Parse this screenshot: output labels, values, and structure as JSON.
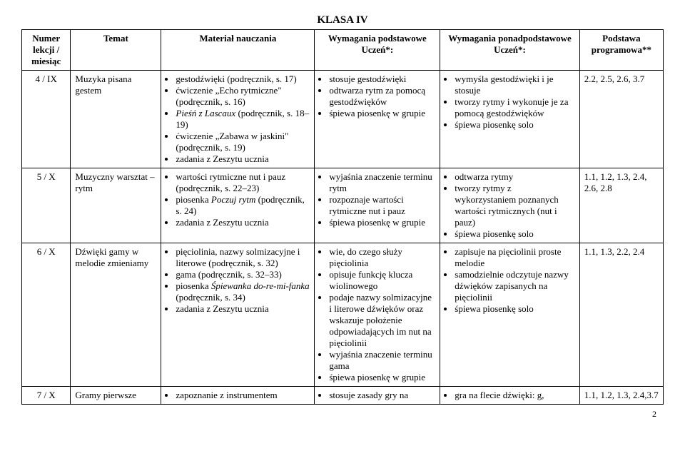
{
  "title": "KLASA IV",
  "headers": {
    "h1": "Numer lekcji / miesiąc",
    "h2": "Temat",
    "h3": "Materiał nauczania",
    "h4a": "Wymagania podstawowe",
    "h4b": "Uczeń*:",
    "h5a": "Wymagania ponadpodstawowe",
    "h5b": "Uczeń*:",
    "h6": "Podstawa programowa**"
  },
  "r1": {
    "num": "4 / IX",
    "topic": "Muzyka pisana gestem",
    "m1": "gestodźwięki (podręcznik, s. 17)",
    "m2": "ćwiczenie „Echo rytmiczne\" (podręcznik, s. 16)",
    "m3a": "Pieśń z Lascaux",
    "m3b": " (podręcznik, s. 18–19)",
    "m4": "ćwiczenie „Zabawa w jaskini\" (podręcznik, s. 19)",
    "m5": "zadania z Zeszytu ucznia",
    "p1": "stosuje gestodźwięki",
    "p2": "odtwarza rytm za pomocą gestodźwięków",
    "p3": "śpiewa piosenkę w grupie",
    "pp1": "wymyśla gestodźwięki i je stosuje",
    "pp2": "tworzy rytmy i wykonuje je za pomocą gestodźwięków",
    "pp3": "śpiewa piosenkę solo",
    "std": "2.2, 2.5, 2.6, 3.7"
  },
  "r2": {
    "num": "5 / X",
    "topic": "Muzyczny warsztat – rytm",
    "m1": "wartości rytmiczne nut i pauz (podręcznik, s. 22–23)",
    "m2a": "piosenka ",
    "m2b": "Poczuj rytm",
    "m2c": " (podręcznik, s. 24)",
    "m3": "zadania z Zeszytu ucznia",
    "p1": "wyjaśnia znaczenie terminu rytm",
    "p2": "rozpoznaje wartości rytmiczne nut i pauz",
    "p3": "śpiewa piosenkę w grupie",
    "pp1": "odtwarza rytmy",
    "pp2": "tworzy rytmy z wykorzystaniem poznanych wartości rytmicznych (nut i pauz)",
    "pp3": "śpiewa piosenkę solo",
    "std": "1.1, 1.2, 1.3, 2.4, 2.6, 2.8"
  },
  "r3": {
    "num": "6 / X",
    "topic": "Dźwięki gamy w melodie zmieniamy",
    "m1": "pięciolinia, nazwy solmizacyjne i literowe (podręcznik, s. 32)",
    "m2": "gama (podręcznik, s. 32–33)",
    "m3a": "piosenka ",
    "m3b": "Śpiewanka do-re-mi-fanka",
    "m3c": " (podręcznik, s. 34)",
    "m4": "zadania z Zeszytu ucznia",
    "p1": "wie, do czego służy pięciolinia",
    "p2": "opisuje funkcję klucza wiolinowego",
    "p3": "podaje nazwy solmizacyjne i literowe dźwięków oraz wskazuje położenie odpowiadających im nut na pięciolinii",
    "p4": "wyjaśnia znaczenie terminu gama",
    "p5": "śpiewa piosenkę w grupie",
    "pp1": "zapisuje na pięciolinii proste melodie",
    "pp2": "samodzielnie odczytuje nazwy dźwięków zapisanych na pięciolinii",
    "pp3": "śpiewa piosenkę solo",
    "std": "1.1, 1.3, 2.2, 2.4"
  },
  "r4": {
    "num": "7 / X",
    "topic": "Gramy pierwsze",
    "m1": "zapoznanie z instrumentem",
    "p1": "stosuje zasady gry na",
    "pp1": "gra na flecie dźwięki: g,",
    "std": "1.1, 1.2, 1.3, 2.4,3.7"
  },
  "pagenum": "2"
}
